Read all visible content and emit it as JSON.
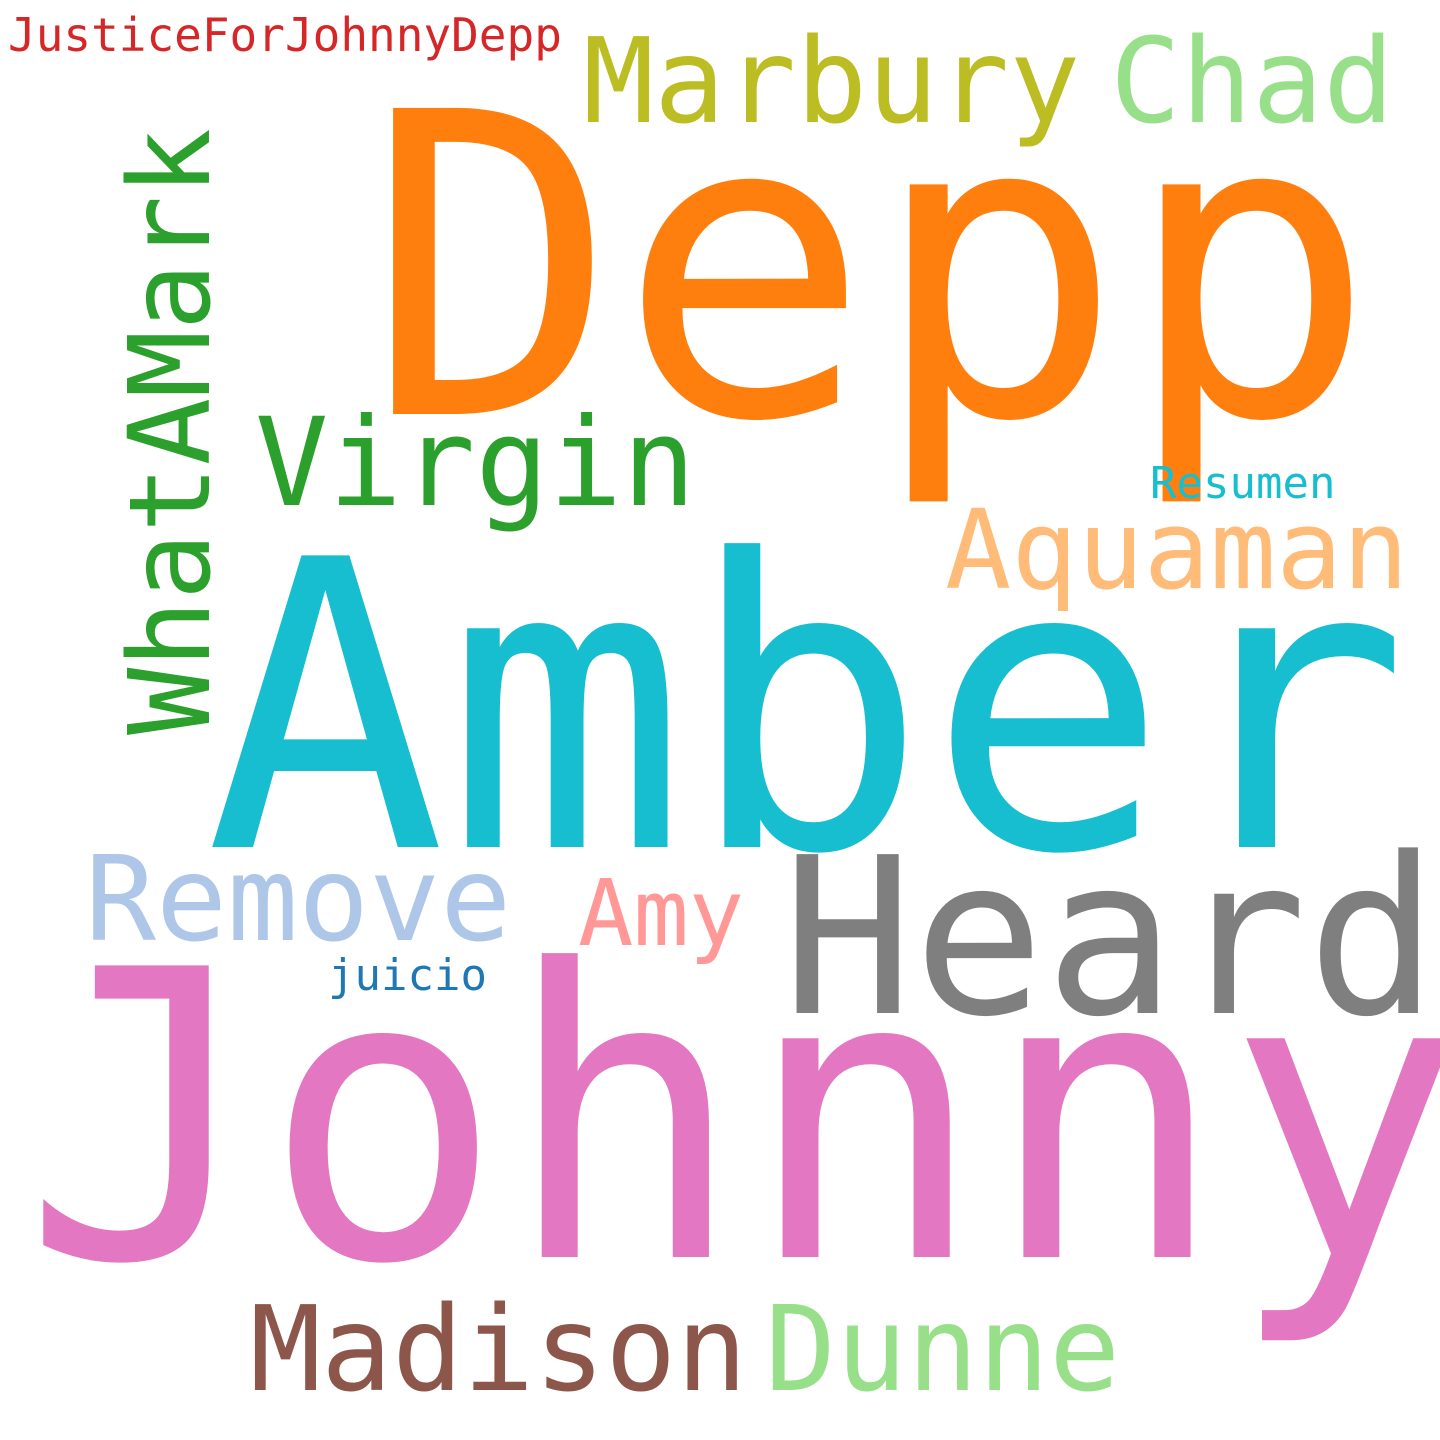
{
  "cloud": {
    "background": "#ffffff",
    "words": {
      "justice": {
        "text": "JusticeForJohnnyDepp",
        "color": "#d62728"
      },
      "marbury": {
        "text": "Marbury",
        "color": "#bcbd22"
      },
      "chad": {
        "text": "Chad",
        "color": "#98df8a"
      },
      "depp": {
        "text": "Depp",
        "color": "#ff7f0e"
      },
      "whatamark": {
        "text": "WhatAMark",
        "color": "#2ca02c",
        "orientation": "vertical"
      },
      "virgin": {
        "text": "Virgin",
        "color": "#2ca02c"
      },
      "resumen": {
        "text": "Resumen",
        "color": "#17becf"
      },
      "aquaman": {
        "text": "Aquaman",
        "color": "#ffbb78"
      },
      "amber": {
        "text": "Amber",
        "color": "#17becf"
      },
      "remove": {
        "text": "Remove",
        "color": "#aec7e8"
      },
      "amy": {
        "text": "Amy",
        "color": "#ff9896"
      },
      "heard": {
        "text": "Heard",
        "color": "#7f7f7f"
      },
      "juicio": {
        "text": "juicio",
        "color": "#1f77b4"
      },
      "johnny": {
        "text": "Johnny",
        "color": "#e377c2"
      },
      "madison": {
        "text": "Madison",
        "color": "#8c564b"
      },
      "dunne": {
        "text": "Dunne",
        "color": "#98df8a"
      }
    }
  }
}
